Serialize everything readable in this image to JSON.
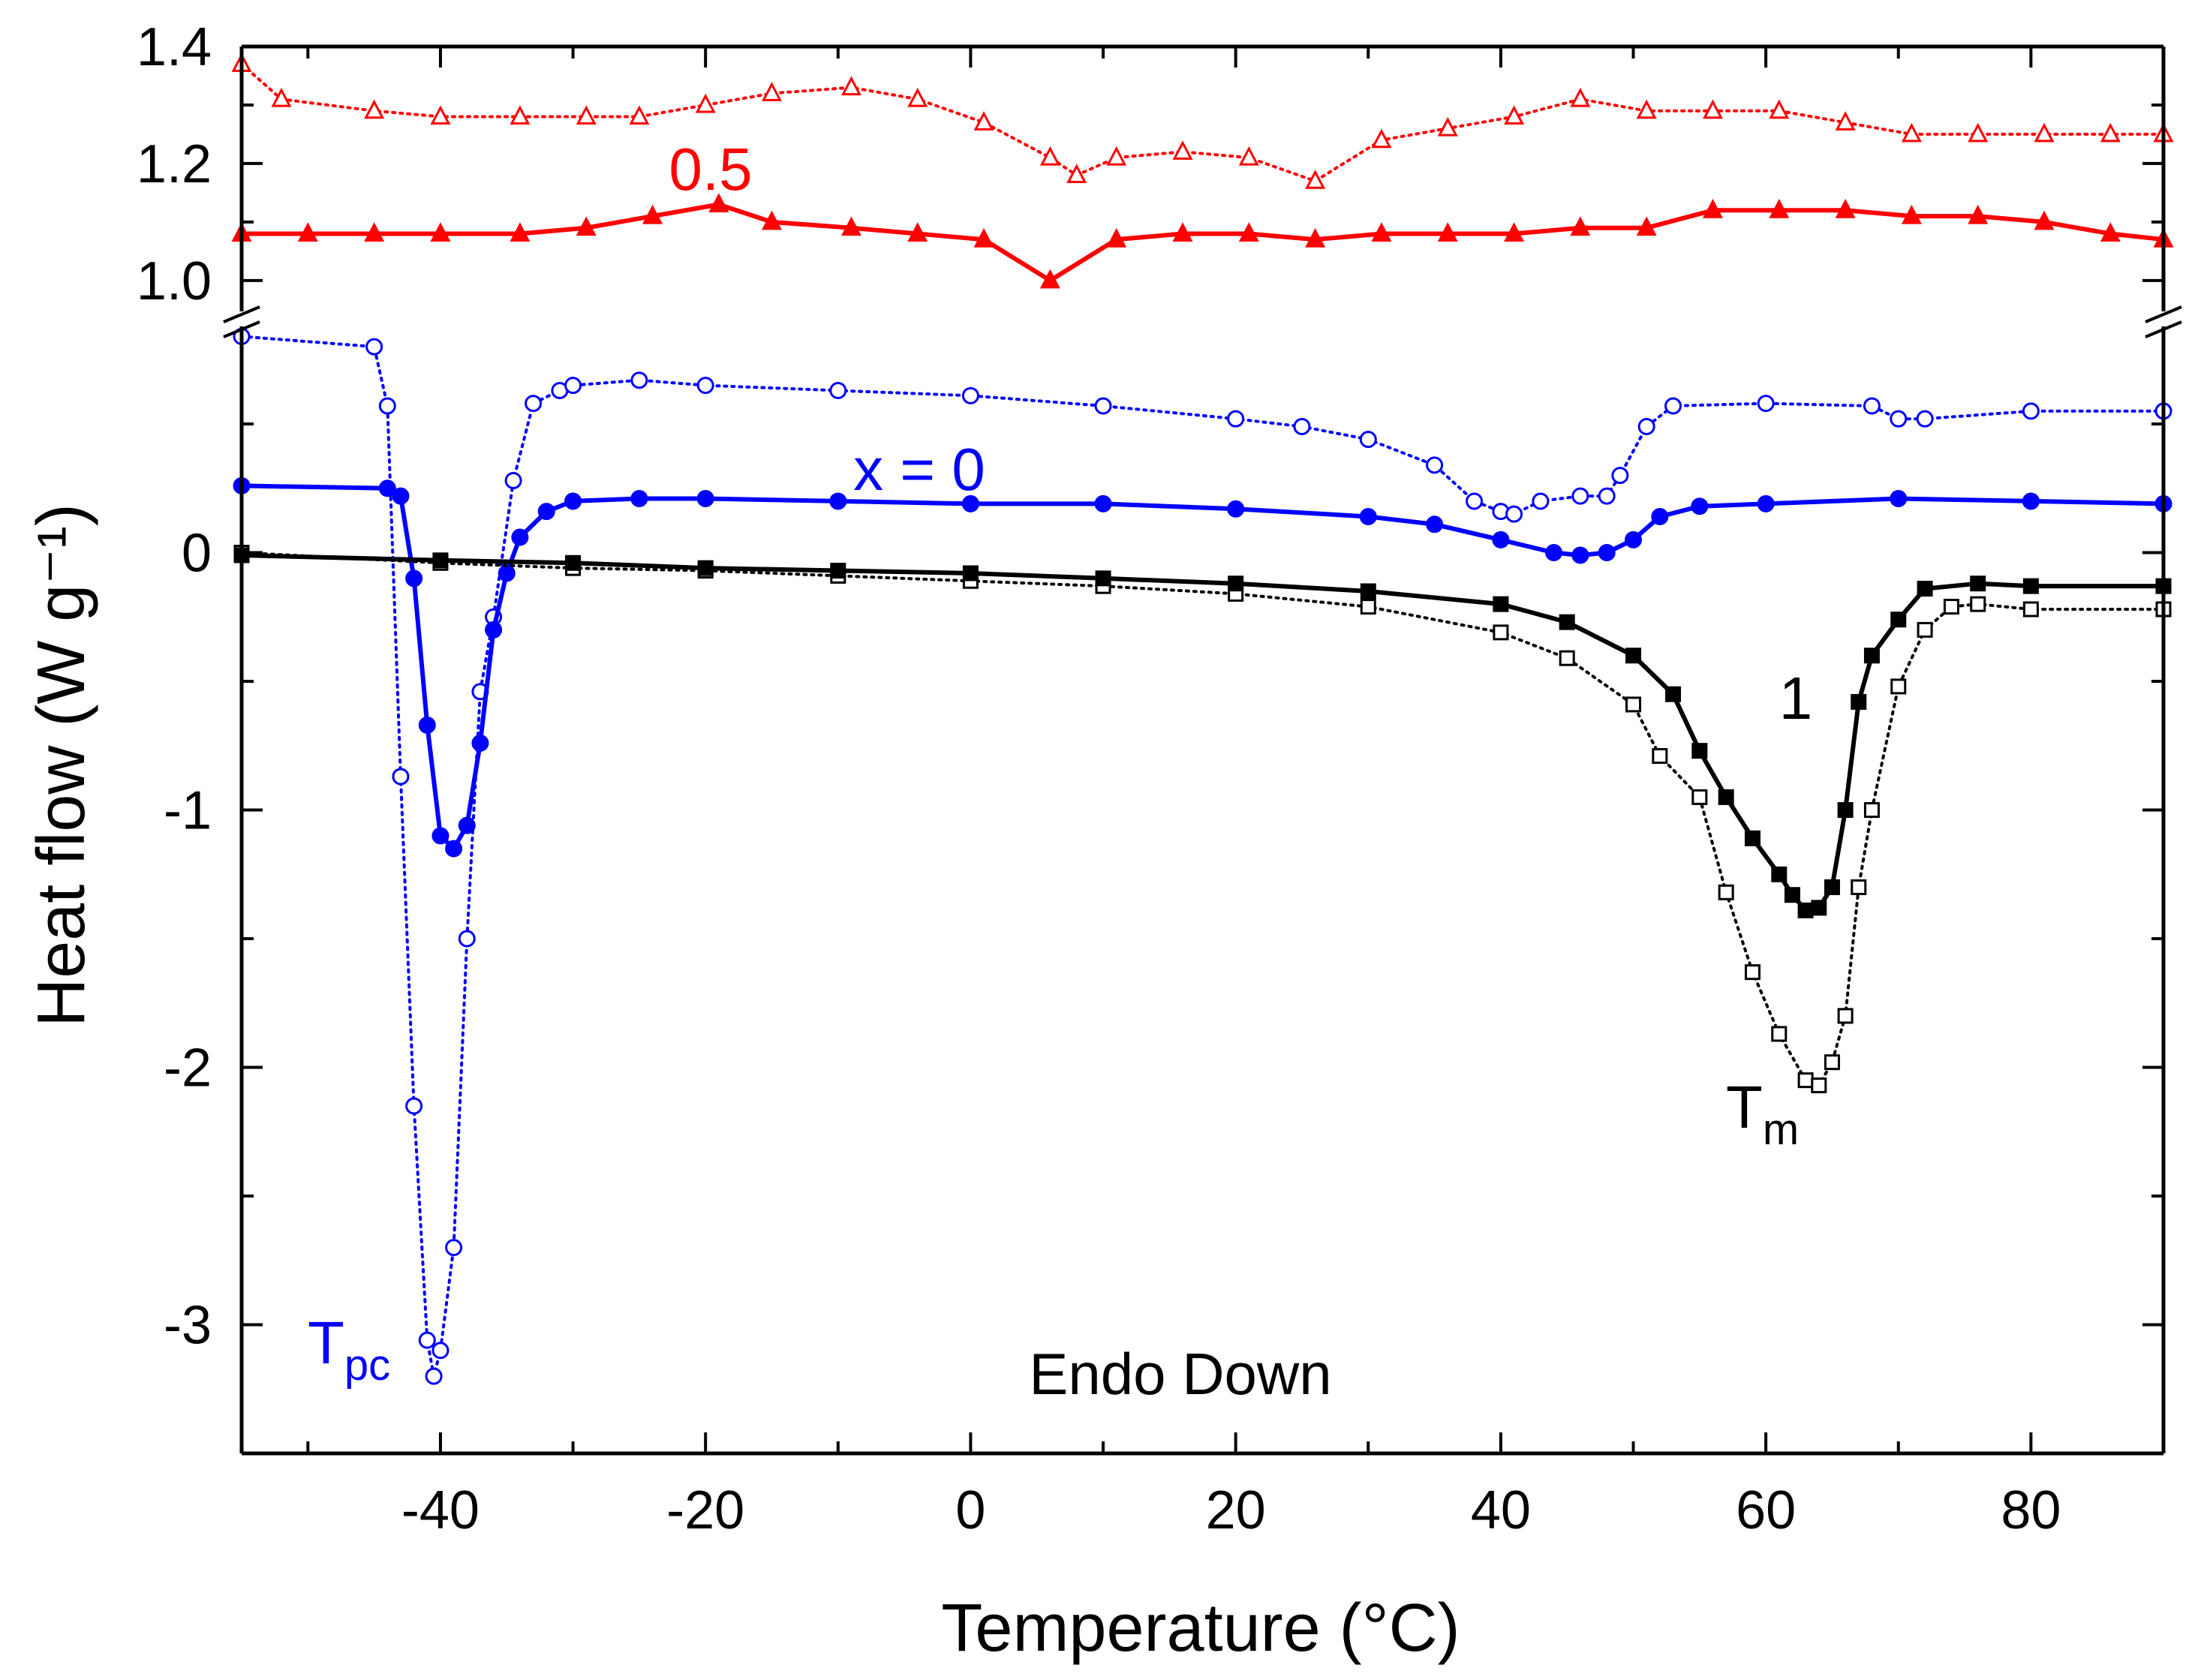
{
  "chart_data": {
    "type": "line",
    "xlabel": "Temperature (°C)",
    "xlim": [
      -55,
      90
    ],
    "xticks": [
      -40,
      -20,
      0,
      20,
      40,
      60,
      80
    ],
    "xtick_labels": [
      "-40",
      "-20",
      "0",
      "20",
      "40",
      "60",
      "80"
    ],
    "ylabel": "Heat flow (W g⁻¹)",
    "lower_axis": {
      "ylim": [
        -3.5,
        0.85
      ],
      "yticks": [
        -3,
        -2,
        -1,
        0
      ],
      "ytick_labels": [
        "-3",
        "-2",
        "-1",
        "0"
      ]
    },
    "upper_axis": {
      "ylim": [
        0.96,
        1.4
      ],
      "yticks": [
        1.0,
        1.2,
        1.4
      ],
      "ytick_labels": [
        "1.0",
        "1.2",
        "1.4"
      ]
    },
    "axis_break": "between lower and upper y ranges",
    "annotations": {
      "label_05": "0.5",
      "label_x0": "x = 0",
      "label_1": "1",
      "tpc_main": "T",
      "tpc_sub": "pc",
      "tm_main": "T",
      "tm_sub": "m",
      "endo": "Endo Down"
    },
    "series": [
      {
        "name": "0.5 (open)",
        "color": "#ff0000",
        "marker": "open-triangle",
        "line": "dotted",
        "axis": "upper",
        "x": [
          -55,
          -52,
          -45,
          -40,
          -34,
          -29,
          -25,
          -20,
          -15,
          -9,
          -4,
          1,
          6,
          8,
          11,
          16,
          21,
          26,
          31,
          36,
          41,
          46,
          51,
          56,
          61,
          66,
          71,
          76,
          81,
          86,
          90
        ],
        "y": [
          1.37,
          1.31,
          1.29,
          1.28,
          1.28,
          1.28,
          1.28,
          1.3,
          1.32,
          1.33,
          1.31,
          1.27,
          1.21,
          1.18,
          1.21,
          1.22,
          1.21,
          1.17,
          1.24,
          1.26,
          1.28,
          1.31,
          1.29,
          1.29,
          1.29,
          1.27,
          1.25,
          1.25,
          1.25,
          1.25,
          1.25
        ]
      },
      {
        "name": "0.5 (filled)",
        "color": "#ff0000",
        "marker": "filled-triangle",
        "line": "solid",
        "axis": "upper",
        "x": [
          -55,
          -50,
          -45,
          -40,
          -34,
          -29,
          -24,
          -19,
          -15,
          -9,
          -4,
          1,
          6,
          11,
          16,
          21,
          26,
          31,
          36,
          41,
          46,
          51,
          56,
          61,
          66,
          71,
          76,
          81,
          86,
          90
        ],
        "y": [
          1.08,
          1.08,
          1.08,
          1.08,
          1.08,
          1.09,
          1.11,
          1.13,
          1.1,
          1.09,
          1.08,
          1.07,
          1.0,
          1.07,
          1.08,
          1.08,
          1.07,
          1.08,
          1.08,
          1.08,
          1.09,
          1.09,
          1.12,
          1.12,
          1.12,
          1.11,
          1.11,
          1.1,
          1.08,
          1.07
        ]
      },
      {
        "name": "x = 0 (open)",
        "color": "#0000ff",
        "marker": "open-circle",
        "line": "dotted",
        "axis": "lower",
        "x": [
          -55,
          -45,
          -44,
          -43,
          -42,
          -41,
          -40.5,
          -40,
          -39,
          -38,
          -37,
          -36,
          -34.5,
          -33,
          -31,
          -30,
          -25,
          -20,
          -10,
          0,
          10,
          20,
          25,
          30,
          35,
          38,
          40,
          41,
          43,
          46,
          48,
          49,
          51,
          53,
          60,
          68,
          70,
          72,
          80,
          90
        ],
        "y": [
          0.84,
          0.8,
          0.57,
          -0.87,
          -2.15,
          -3.06,
          -3.2,
          -3.1,
          -2.7,
          -1.5,
          -0.54,
          -0.25,
          0.28,
          0.58,
          0.63,
          0.65,
          0.67,
          0.65,
          0.63,
          0.61,
          0.57,
          0.52,
          0.49,
          0.44,
          0.34,
          0.2,
          0.16,
          0.15,
          0.2,
          0.22,
          0.22,
          0.3,
          0.49,
          0.57,
          0.58,
          0.57,
          0.52,
          0.52,
          0.55,
          0.55
        ]
      },
      {
        "name": "x = 0 (filled)",
        "color": "#0000ff",
        "marker": "filled-circle",
        "line": "solid",
        "axis": "lower",
        "x": [
          -55,
          -44,
          -43,
          -42,
          -41,
          -40,
          -39,
          -38,
          -37,
          -36,
          -35,
          -34,
          -32,
          -30,
          -25,
          -20,
          -10,
          0,
          10,
          20,
          30,
          35,
          40,
          44,
          46,
          48,
          50,
          52,
          55,
          60,
          70,
          80,
          90
        ],
        "y": [
          0.26,
          0.25,
          0.22,
          -0.1,
          -0.67,
          -1.1,
          -1.15,
          -1.06,
          -0.74,
          -0.3,
          -0.08,
          0.06,
          0.16,
          0.2,
          0.21,
          0.21,
          0.2,
          0.19,
          0.19,
          0.17,
          0.14,
          0.11,
          0.05,
          0.0,
          -0.01,
          0.0,
          0.05,
          0.14,
          0.18,
          0.19,
          0.21,
          0.2,
          0.19
        ]
      },
      {
        "name": "1 (open)",
        "color": "#000000",
        "marker": "open-square",
        "line": "dotted",
        "axis": "lower",
        "x": [
          -55,
          -40,
          -30,
          -20,
          -10,
          0,
          10,
          20,
          30,
          40,
          45,
          50,
          52,
          55,
          57,
          59,
          61,
          63,
          64,
          65,
          66,
          67,
          68,
          70,
          72,
          74,
          76,
          80,
          90
        ],
        "y": [
          0.0,
          -0.04,
          -0.06,
          -0.07,
          -0.09,
          -0.11,
          -0.13,
          -0.16,
          -0.21,
          -0.31,
          -0.41,
          -0.59,
          -0.79,
          -0.95,
          -1.32,
          -1.63,
          -1.87,
          -2.05,
          -2.07,
          -1.98,
          -1.8,
          -1.3,
          -1.0,
          -0.52,
          -0.3,
          -0.21,
          -0.2,
          -0.22,
          -0.22
        ]
      },
      {
        "name": "1 (filled)",
        "color": "#000000",
        "marker": "filled-square",
        "line": "solid",
        "axis": "lower",
        "x": [
          -55,
          -40,
          -30,
          -20,
          -10,
          0,
          10,
          20,
          30,
          40,
          45,
          50,
          53,
          55,
          57,
          59,
          61,
          62,
          63,
          64,
          65,
          66,
          67,
          68,
          70,
          72,
          76,
          80,
          90
        ],
        "y": [
          -0.01,
          -0.03,
          -0.04,
          -0.06,
          -0.07,
          -0.08,
          -0.1,
          -0.12,
          -0.15,
          -0.2,
          -0.27,
          -0.4,
          -0.55,
          -0.77,
          -0.95,
          -1.11,
          -1.25,
          -1.33,
          -1.39,
          -1.38,
          -1.3,
          -1.0,
          -0.58,
          -0.4,
          -0.26,
          -0.14,
          -0.12,
          -0.13,
          -0.13
        ]
      }
    ]
  }
}
